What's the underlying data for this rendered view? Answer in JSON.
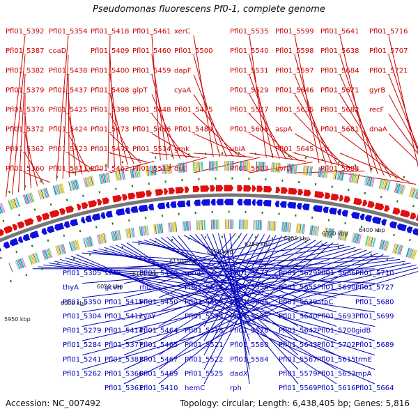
{
  "title": "Pseudomonas fluorescens Pf0-1, complete genome",
  "footer": {
    "accession": "Accession: NC_007492",
    "summary": "Topology: circular; Length: 6,438,405 bp; Genes: 5,816"
  },
  "colors": {
    "forward": "#e01010",
    "reverse": "#1010dd",
    "backbone": "#777777",
    "tick": "#1a7a1a",
    "label_fwd": "#cc0000",
    "label_rev": "#0000bb"
  },
  "kbp_ticks": [
    "5950 kbp",
    "6000 kbp",
    "6050 kbp",
    "6100 kbp",
    "6150 kbp",
    "6200 kbp",
    "6250 kbp",
    "6300 kbp",
    "6350 kbp",
    "6400 kbp"
  ],
  "forward_labels": [
    "Pfl01_5392",
    "Pfl01_5387",
    "Pfl01_5382",
    "Pfl01_5379",
    "Pfl01_5376",
    "Pfl01_5372",
    "Pfl01_5362",
    "Pfl01_5360",
    "Pfl01_5354",
    "coaD",
    "Pfl01_5438",
    "Pfl01_5437",
    "Pfl01_5425",
    "Pfl01_5424",
    "Pfl01_5423",
    "Pfl01_5421",
    "Pfl01_5418",
    "Pfl01_5409",
    "Pfl01_5400",
    "Pfl01_5408",
    "Pfl01_5398",
    "Pfl01_5473",
    "Pfl01_5472",
    "Pfl01_5462",
    "Pfl01_5461",
    "Pfl01_5460",
    "Pfl01_5459",
    "glpT",
    "Pfl01_5448",
    "Pfl01_5436",
    "Pfl01_5514",
    "Pfl01_5513",
    "xerC",
    "Pfl01_5500",
    "dapF",
    "cyaA",
    "Pfl01_5475",
    "Pfl01_5489",
    "gmk",
    "dut",
    "Pfl01_5535",
    "Pfl01_5540",
    "Pfl01_5531",
    "Pfl01_5529",
    "Pfl01_5527",
    "Pfl01_5606",
    "ubiA",
    "Pfl01_5603",
    "Pfl01_5599",
    "Pfl01_5598",
    "Pfl01_5597",
    "Pfl01_5646",
    "Pfl01_5635",
    "aspA",
    "Pfl01_5645",
    "uvrD",
    "Pfl01_5641",
    "Pfl01_5638",
    "Pfl01_5684",
    "Pfl01_5671",
    "Pfl01_5682",
    "Pfl01_5681",
    "cls",
    "Pfl01_5688",
    "Pfl01_5716",
    "Pfl01_5707",
    "Pfl01_5721",
    "gyrB",
    "recF",
    "dnaA"
  ],
  "reverse_labels": [
    "Pfl01_5710",
    "Pfl01_5727",
    "Pfl01_5680",
    "Pfl01_5699",
    "gidB",
    "Pfl01_5689",
    "trmE",
    "rnpA",
    "Pfl01_5664",
    "Pfl01_5666",
    "Pfl01_5690",
    "atpC",
    "Pfl01_5693",
    "Pfl01_5700",
    "Pfl01_5702",
    "Pfl01_5615",
    "Pfl01_5633",
    "Pfl01_5616",
    "Pfl01_5629",
    "Pfl01_5655",
    "Pfl01_5639",
    "Pfl01_5640",
    "Pfl01_5642",
    "Pfl01_5643",
    "Pfl01_5567",
    "Pfl01_5579",
    "Pfl01_5569",
    "Pfl01_5577",
    "Pfl01_5554",
    "Pfl01_5605",
    "Pfl01_5585",
    "Pfl01_5578",
    "Pfl01_5580",
    "Pfl01_5584",
    "dadX",
    "rph",
    "rpmG",
    "Pfl01_5515",
    "Pfl01_5494",
    "Pfl01_5533",
    "Pfl01_5518",
    "Pfl01_5521",
    "Pfl01_5522",
    "Pfl01_5525",
    "hemC",
    "Pfl01_5449",
    "rho",
    "Pfl01_5450",
    "cyaY",
    "Pfl01_5464",
    "Pfl01_5465",
    "Pfl01_5467",
    "Pfl01_5469",
    "Pfl01_5410",
    "ssuB",
    "gcvH",
    "Pfl01_5415",
    "Pfl01_5412",
    "Pfl01_5414",
    "Pfl01_5377",
    "Pfl01_5383",
    "Pfl01_5366",
    "Pfl01_5361",
    "Pfl01_5305",
    "thyA",
    "Pfl01_5350",
    "Pfl01_5304",
    "Pfl01_5279",
    "Pfl01_5284",
    "Pfl01_5241",
    "Pfl01_5262"
  ]
}
